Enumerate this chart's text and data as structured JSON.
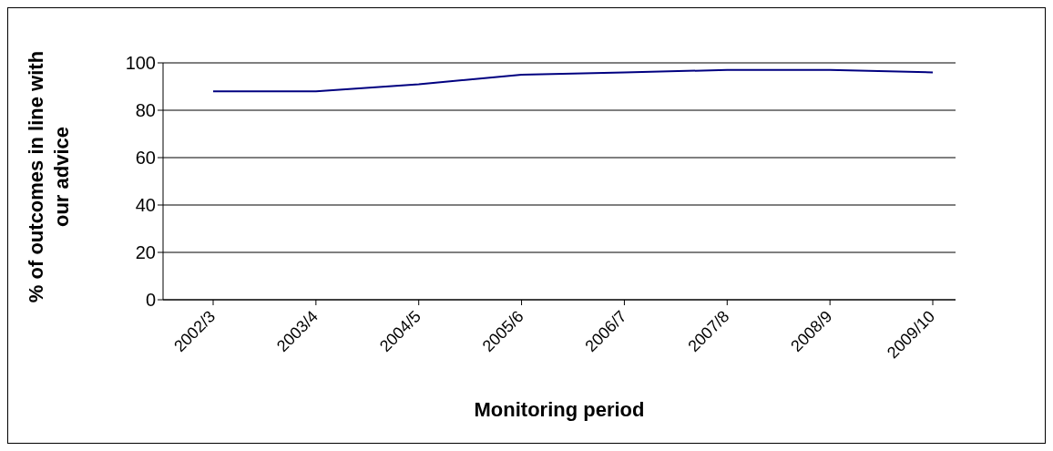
{
  "chart_data": {
    "type": "line",
    "xlabel": "Monitoring period",
    "ylabel": "% of outcomes in line with our advice",
    "categories": [
      "2002/3",
      "2003/4",
      "2004/5",
      "2005/6",
      "2006/7",
      "2007/8",
      "2008/9",
      "2009/10"
    ],
    "series": [
      {
        "color": "#000080",
        "values": [
          88,
          88,
          91,
          95,
          96,
          97,
          97,
          96
        ]
      }
    ],
    "ylim": [
      0,
      100
    ],
    "yticks": [
      0,
      20,
      40,
      60,
      80,
      100
    ],
    "grid": "y",
    "legend": false,
    "marker": "none",
    "line_style": "solid"
  }
}
